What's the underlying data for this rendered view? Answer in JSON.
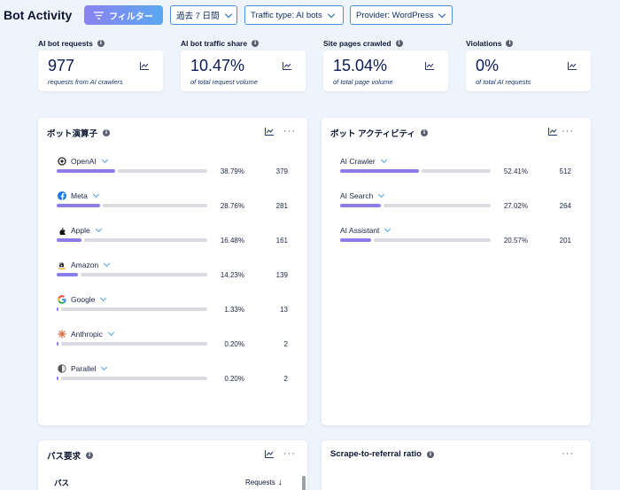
{
  "page": {
    "title": "Bot Activity"
  },
  "toolbar": {
    "filter_label": "フィルター",
    "date_range": "過去 7 日間",
    "traffic_type": "Traffic type: AI bots",
    "provider": "Provider: WordPress"
  },
  "metrics": [
    {
      "label": "AI bot requests",
      "value": "977",
      "sub": "requests from AI crawlers"
    },
    {
      "label": "AI bot traffic share",
      "value": "10.47%",
      "sub": "of total request volume"
    },
    {
      "label": "Site pages crawled",
      "value": "15.04%",
      "sub": "of total page volume"
    },
    {
      "label": "Violations",
      "value": "0%",
      "sub": "of total AI requests"
    }
  ],
  "operators_panel": {
    "title": "ボット演算子",
    "rows": [
      {
        "name": "OpenAI",
        "icon": "openai-icon",
        "pct": "38.79%",
        "share": 38.79,
        "count": "379"
      },
      {
        "name": "Meta",
        "icon": "meta-icon",
        "pct": "28.76%",
        "share": 28.76,
        "count": "281"
      },
      {
        "name": "Apple",
        "icon": "apple-icon",
        "pct": "16.48%",
        "share": 16.48,
        "count": "161"
      },
      {
        "name": "Amazon",
        "icon": "amazon-icon",
        "pct": "14.23%",
        "share": 14.23,
        "count": "139"
      },
      {
        "name": "Google",
        "icon": "google-icon",
        "pct": "1.33%",
        "share": 1.33,
        "count": "13"
      },
      {
        "name": "Anthropic",
        "icon": "anthropic-icon",
        "pct": "0.20%",
        "share": 0.2,
        "count": "2"
      },
      {
        "name": "Parallel",
        "icon": "parallel-icon",
        "pct": "0.20%",
        "share": 0.2,
        "count": "2"
      }
    ]
  },
  "activity_panel": {
    "title": "ボット アクティビティ",
    "rows": [
      {
        "name": "AI Crawler",
        "pct": "52.41%",
        "share": 52.41,
        "count": "512"
      },
      {
        "name": "AI Search",
        "pct": "27.02%",
        "share": 27.02,
        "count": "264"
      },
      {
        "name": "AI Assistant",
        "pct": "20.57%",
        "share": 20.57,
        "count": "201"
      }
    ]
  },
  "paths_panel": {
    "title": "パス要求",
    "col_path": "パス",
    "col_requests": "Requests",
    "sort_glyph": "↓"
  },
  "ratio_panel": {
    "title": "Scrape-to-referral ratio"
  },
  "colors": {
    "bar_fill": "#8a7de8",
    "bar_track": "#d9dbe1",
    "accent": "#4d8fd6"
  }
}
